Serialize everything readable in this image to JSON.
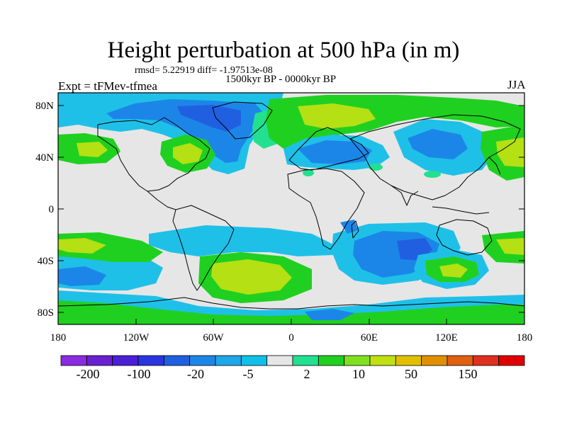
{
  "header": {
    "title": "Height perturbation at 500 hPa (in m)",
    "stats": "rmsd= 5.22919 diff= -1.97513e-08",
    "experiment": "Expt = tFMev-tfmea",
    "period": "1500kyr BP - 0000kyr BP",
    "season": "JJA"
  },
  "axes": {
    "lat_labels": [
      "80N",
      "40N",
      "0",
      "40S",
      "80S"
    ],
    "lon_labels": [
      "180",
      "120W",
      "60W",
      "0",
      "60E",
      "120E",
      "180"
    ]
  },
  "colorbar": {
    "colors": [
      "#8a2be2",
      "#6a1fd0",
      "#4b1fd6",
      "#2a35e0",
      "#2060e0",
      "#1c86e8",
      "#1fa6e8",
      "#10c0e8",
      "#e6e6e6",
      "#22e090",
      "#20d020",
      "#80e020",
      "#c0e010",
      "#e0c000",
      "#e09000",
      "#e06010",
      "#e03020",
      "#e00000"
    ],
    "labels": [
      "-200",
      "-100",
      "-20",
      "-5",
      "2",
      "10",
      "50",
      "150"
    ]
  },
  "palette": {
    "neutral": "#e6e6e6",
    "cyan": "#1fc0e8",
    "blue": "#1c86e8",
    "dark_blue": "#2060e0",
    "teal": "#22e090",
    "green": "#20d020",
    "yellow_green": "#b4e014",
    "coast": "#000000"
  }
}
